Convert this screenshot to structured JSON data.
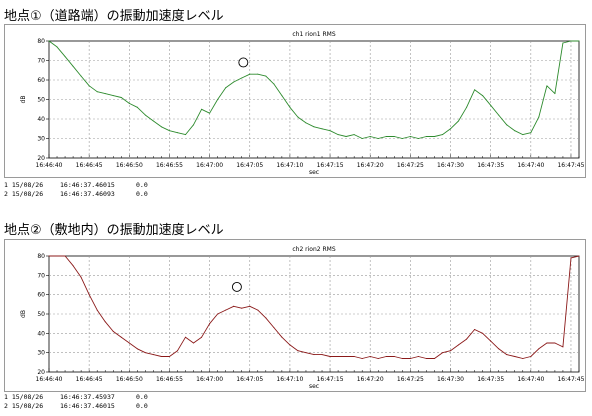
{
  "headings": [
    "地点①（道路端）の振動加速度レベル",
    "地点②（敷地内）の振動加速度レベル"
  ],
  "colors": {
    "series1": "#2e8b2e",
    "series2": "#8b1a1a",
    "grid": "#9a9a9a"
  },
  "chart_data": [
    {
      "type": "line",
      "title": "ch1 rion1 RMS",
      "xlabel": "sec",
      "ylabel": "dB",
      "ylim": [
        20,
        80
      ],
      "yticks": [
        20,
        30,
        40,
        50,
        60,
        70,
        80
      ],
      "xticks": [
        "16:46:40",
        "16:46:45",
        "16:46:50",
        "16:46:55",
        "16:47:00",
        "16:47:05",
        "16:47:10",
        "16:47:15",
        "16:47:20",
        "16:47:25",
        "16:47:30",
        "16:47:35",
        "16:47:40",
        "16:47:45"
      ],
      "xlim": [
        0,
        66
      ],
      "grid": true,
      "series": [
        {
          "values": [
            [
              0,
              80
            ],
            [
              1,
              77
            ],
            [
              2,
              72
            ],
            [
              3,
              67
            ],
            [
              4,
              62
            ],
            [
              5,
              57
            ],
            [
              6,
              54
            ],
            [
              7,
              53
            ],
            [
              8,
              52
            ],
            [
              9,
              51
            ],
            [
              10,
              48
            ],
            [
              11,
              46
            ],
            [
              12,
              42
            ],
            [
              13,
              39
            ],
            [
              14,
              36
            ],
            [
              15,
              34
            ],
            [
              16,
              33
            ],
            [
              17,
              32
            ],
            [
              18,
              37
            ],
            [
              19,
              45
            ],
            [
              20,
              43
            ],
            [
              21,
              50
            ],
            [
              22,
              56
            ],
            [
              23,
              59
            ],
            [
              24,
              61
            ],
            [
              25,
              63
            ],
            [
              26,
              63
            ],
            [
              27,
              62
            ],
            [
              28,
              58
            ],
            [
              29,
              52
            ],
            [
              30,
              46
            ],
            [
              31,
              41
            ],
            [
              32,
              38
            ],
            [
              33,
              36
            ],
            [
              34,
              35
            ],
            [
              35,
              34
            ],
            [
              36,
              32
            ],
            [
              37,
              31
            ],
            [
              38,
              32
            ],
            [
              39,
              30
            ],
            [
              40,
              31
            ],
            [
              41,
              30
            ],
            [
              42,
              31
            ],
            [
              43,
              31
            ],
            [
              44,
              30
            ],
            [
              45,
              31
            ],
            [
              46,
              30
            ],
            [
              47,
              31
            ],
            [
              48,
              31
            ],
            [
              49,
              32
            ],
            [
              50,
              35
            ],
            [
              51,
              39
            ],
            [
              52,
              46
            ],
            [
              53,
              55
            ],
            [
              54,
              52
            ],
            [
              55,
              47
            ],
            [
              56,
              42
            ],
            [
              57,
              37
            ],
            [
              58,
              34
            ],
            [
              59,
              32
            ],
            [
              60,
              33
            ],
            [
              61,
              41
            ],
            [
              62,
              57
            ],
            [
              63,
              53
            ],
            [
              64,
              79
            ],
            [
              65,
              80
            ],
            [
              66,
              80
            ]
          ]
        }
      ],
      "marker": {
        "x": 24.2,
        "y": 69,
        "shape": "circle"
      },
      "cursor_rows": [
        {
          "index": "1",
          "date": "15/08/26",
          "time": "16:46:37.46015",
          "value": "0.0"
        },
        {
          "index": "2",
          "date": "15/08/26",
          "time": "16:46:37.46093",
          "value": "0.0"
        }
      ]
    },
    {
      "type": "line",
      "title": "ch2 rion2 RMS",
      "xlabel": "sec",
      "ylabel": "dB",
      "ylim": [
        20,
        80
      ],
      "yticks": [
        20,
        30,
        40,
        50,
        60,
        70,
        80
      ],
      "xticks": [
        "16:46:40",
        "16:46:45",
        "16:46:50",
        "16:46:55",
        "16:47:00",
        "16:47:05",
        "16:47:10",
        "16:47:15",
        "16:47:20",
        "16:47:25",
        "16:47:30",
        "16:47:35",
        "16:47:40",
        "16:47:45"
      ],
      "xlim": [
        0,
        66
      ],
      "grid": true,
      "series": [
        {
          "values": [
            [
              0,
              80
            ],
            [
              1,
              80
            ],
            [
              2,
              80
            ],
            [
              3,
              75
            ],
            [
              4,
              69
            ],
            [
              5,
              60
            ],
            [
              6,
              52
            ],
            [
              7,
              46
            ],
            [
              8,
              41
            ],
            [
              9,
              38
            ],
            [
              10,
              35
            ],
            [
              11,
              32
            ],
            [
              12,
              30
            ],
            [
              13,
              29
            ],
            [
              14,
              28
            ],
            [
              15,
              28
            ],
            [
              16,
              31
            ],
            [
              17,
              38
            ],
            [
              18,
              35
            ],
            [
              19,
              38
            ],
            [
              20,
              45
            ],
            [
              21,
              50
            ],
            [
              22,
              52
            ],
            [
              23,
              54
            ],
            [
              24,
              53
            ],
            [
              25,
              54
            ],
            [
              26,
              52
            ],
            [
              27,
              48
            ],
            [
              28,
              43
            ],
            [
              29,
              38
            ],
            [
              30,
              34
            ],
            [
              31,
              31
            ],
            [
              32,
              30
            ],
            [
              33,
              29
            ],
            [
              34,
              29
            ],
            [
              35,
              28
            ],
            [
              36,
              28
            ],
            [
              37,
              28
            ],
            [
              38,
              28
            ],
            [
              39,
              27
            ],
            [
              40,
              28
            ],
            [
              41,
              27
            ],
            [
              42,
              28
            ],
            [
              43,
              28
            ],
            [
              44,
              27
            ],
            [
              45,
              27
            ],
            [
              46,
              28
            ],
            [
              47,
              27
            ],
            [
              48,
              27
            ],
            [
              49,
              30
            ],
            [
              50,
              31
            ],
            [
              51,
              34
            ],
            [
              52,
              37
            ],
            [
              53,
              42
            ],
            [
              54,
              40
            ],
            [
              55,
              36
            ],
            [
              56,
              32
            ],
            [
              57,
              29
            ],
            [
              58,
              28
            ],
            [
              59,
              27
            ],
            [
              60,
              28
            ],
            [
              61,
              32
            ],
            [
              62,
              35
            ],
            [
              63,
              35
            ],
            [
              64,
              33
            ],
            [
              65,
              79
            ],
            [
              66,
              80
            ]
          ]
        }
      ],
      "marker": {
        "x": 23.4,
        "y": 64,
        "shape": "circle"
      },
      "cursor_rows": [
        {
          "index": "1",
          "date": "15/08/26",
          "time": "16:46:37.45937",
          "value": "0.0"
        },
        {
          "index": "2",
          "date": "15/08/26",
          "time": "16:46:37.46015",
          "value": "0.0"
        }
      ]
    }
  ]
}
